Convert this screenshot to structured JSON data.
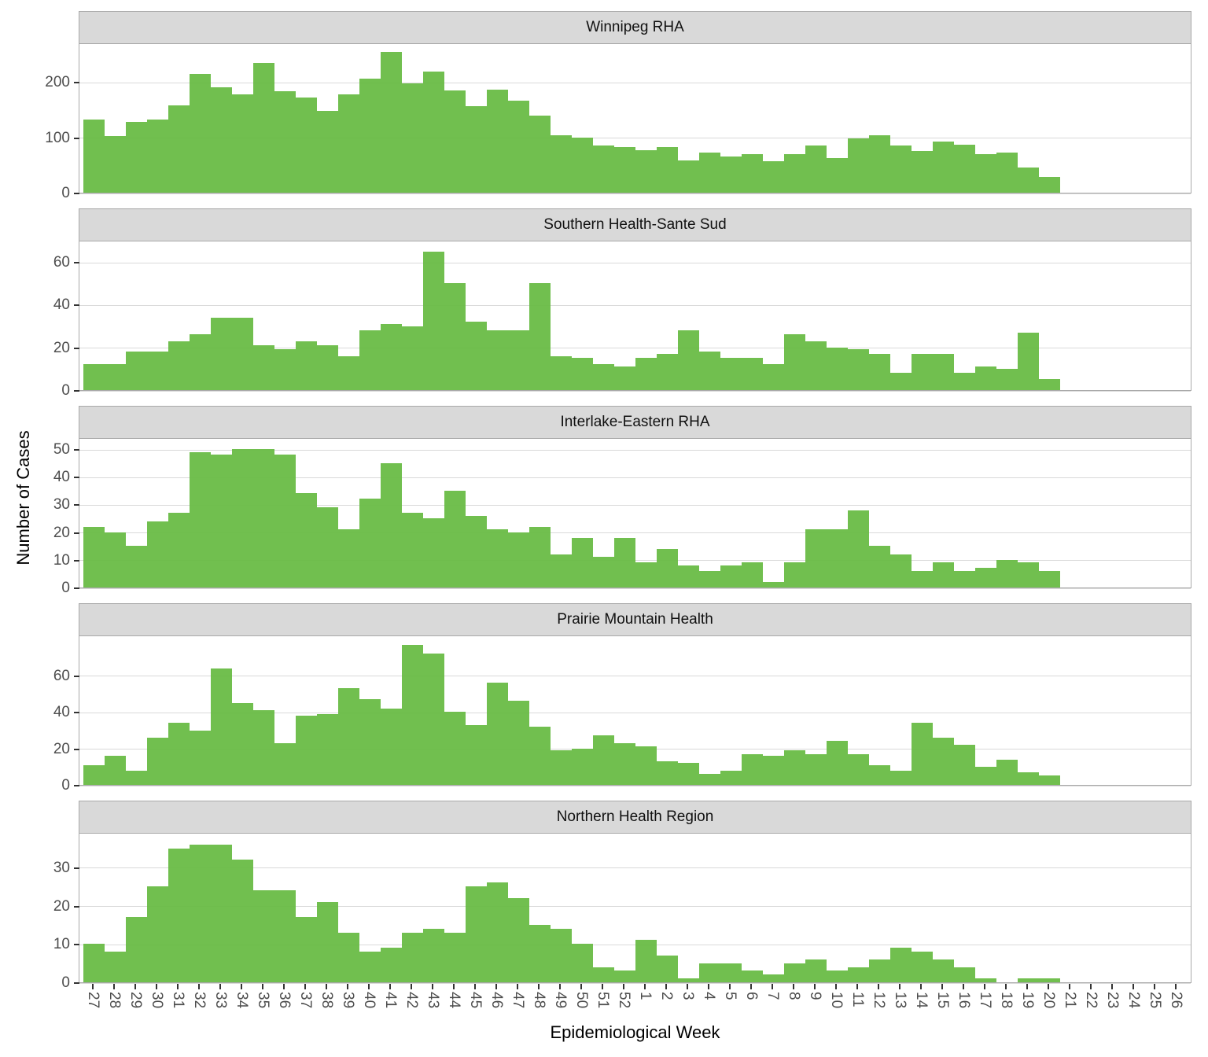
{
  "figure": {
    "y_axis_title": "Number of Cases",
    "x_axis_title": "Epidemiological Week",
    "bar_color": "#68BB44",
    "strip_background": "#D9D9D9",
    "gridline_color": "#D9D9D9",
    "panel_border_color": "#A9A9A9",
    "axis_text_color": "#4D4D4D"
  },
  "chart_data": {
    "type": "bar",
    "subtype": "faceted-weekly-histogram",
    "xlabel": "Epidemiological Week",
    "ylabel": "Number of Cases",
    "legend": "none",
    "grid": "major-horizontal",
    "categories": [
      27,
      28,
      29,
      30,
      31,
      32,
      33,
      34,
      35,
      36,
      37,
      38,
      39,
      40,
      41,
      42,
      43,
      44,
      45,
      46,
      47,
      48,
      49,
      50,
      51,
      52,
      1,
      2,
      3,
      4,
      5,
      6,
      7,
      8,
      9,
      10,
      11,
      12,
      13,
      14,
      15,
      16,
      17,
      18,
      19,
      20,
      21,
      22,
      23,
      24,
      25,
      26
    ],
    "panels": [
      {
        "title": "Winnipeg RHA",
        "y_ticks": [
          0,
          100,
          200
        ],
        "ylim": [
          0,
          270
        ],
        "values": [
          132,
          102,
          128,
          132,
          158,
          215,
          190,
          177,
          235,
          184,
          172,
          148,
          177,
          206,
          255,
          197,
          219,
          185,
          156,
          186,
          166,
          140,
          104,
          99,
          85,
          83,
          77,
          83,
          58,
          73,
          65,
          69,
          57,
          69,
          85,
          63,
          98,
          104,
          85,
          75,
          92,
          87,
          69,
          73,
          45,
          28,
          null,
          null,
          null,
          null,
          null,
          null
        ]
      },
      {
        "title": "Southern Health-Sante Sud",
        "y_ticks": [
          0,
          20,
          40,
          60
        ],
        "ylim": [
          0,
          70
        ],
        "values": [
          12,
          12,
          18,
          18,
          23,
          26,
          34,
          34,
          21,
          19,
          23,
          21,
          16,
          28,
          31,
          30,
          65,
          50,
          32,
          28,
          28,
          50,
          16,
          15,
          12,
          11,
          15,
          17,
          28,
          18,
          15,
          15,
          12,
          26,
          23,
          20,
          19,
          17,
          8,
          17,
          17,
          8,
          11,
          10,
          27,
          5,
          null,
          null,
          null,
          null,
          null,
          null
        ]
      },
      {
        "title": "Interlake-Eastern RHA",
        "y_ticks": [
          0,
          10,
          20,
          30,
          40,
          50
        ],
        "ylim": [
          0,
          54
        ],
        "values": [
          22,
          20,
          15,
          24,
          27,
          49,
          48,
          50,
          50,
          48,
          34,
          29,
          21,
          32,
          45,
          27,
          25,
          35,
          26,
          21,
          20,
          22,
          12,
          18,
          11,
          18,
          9,
          14,
          8,
          6,
          8,
          9,
          2,
          9,
          21,
          21,
          28,
          15,
          12,
          6,
          9,
          6,
          7,
          10,
          9,
          6,
          null,
          null,
          null,
          null,
          null,
          null
        ]
      },
      {
        "title": "Prairie Mountain Health",
        "y_ticks": [
          0,
          20,
          40,
          60
        ],
        "ylim": [
          0,
          82
        ],
        "values": [
          11,
          16,
          8,
          26,
          34,
          30,
          64,
          45,
          41,
          23,
          38,
          39,
          53,
          47,
          42,
          77,
          72,
          40,
          33,
          56,
          46,
          32,
          19,
          20,
          27,
          23,
          21,
          13,
          12,
          6,
          8,
          17,
          16,
          19,
          17,
          24,
          17,
          11,
          8,
          34,
          26,
          22,
          10,
          14,
          7,
          5,
          null,
          null,
          null,
          null,
          null,
          null
        ]
      },
      {
        "title": "Northern Health Region",
        "y_ticks": [
          0,
          10,
          20,
          30
        ],
        "ylim": [
          0,
          39
        ],
        "values": [
          10,
          8,
          17,
          25,
          35,
          36,
          36,
          32,
          24,
          24,
          17,
          21,
          13,
          8,
          9,
          13,
          14,
          13,
          25,
          26,
          22,
          15,
          14,
          10,
          4,
          3,
          11,
          7,
          1,
          5,
          5,
          3,
          2,
          5,
          6,
          3,
          4,
          6,
          9,
          8,
          6,
          4,
          1,
          0,
          1,
          1,
          null,
          null,
          null,
          null,
          null,
          null
        ]
      }
    ]
  }
}
